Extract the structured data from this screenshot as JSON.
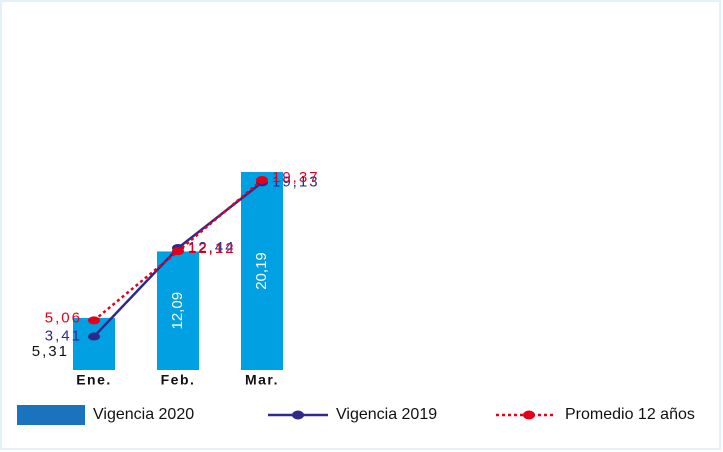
{
  "chart_data": {
    "type": "bar_line",
    "categories": [
      "Ene.",
      "Feb.",
      "Mar."
    ],
    "series": [
      {
        "name": "Vigencia 2020",
        "type": "bar",
        "color": "#00a0e3",
        "legend_color": "#1a73bd",
        "values": [
          5.31,
          12.09,
          20.19
        ],
        "value_labels": [
          "5,31",
          "12,09",
          "20,19"
        ]
      },
      {
        "name": "Vigencia 2019",
        "type": "line",
        "color": "#2e2a8c",
        "values": [
          3.41,
          12.44,
          19.13
        ],
        "value_labels": [
          "3,41",
          "12,44",
          "19,13"
        ]
      },
      {
        "name": "Promedio 12 años",
        "type": "line",
        "dashed": true,
        "color": "#e3001b",
        "values": [
          5.06,
          12.12,
          19.37
        ],
        "value_labels": [
          "5,06",
          "12,12",
          "19,37"
        ]
      }
    ]
  }
}
